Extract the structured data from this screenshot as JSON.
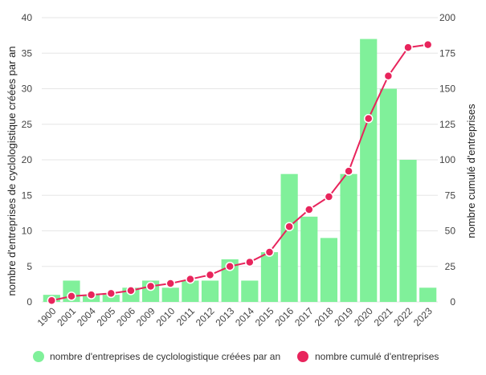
{
  "chart_data": {
    "type": "bar",
    "categories": [
      "1900",
      "2001",
      "2004",
      "2005",
      "2006",
      "2009",
      "2010",
      "2011",
      "2012",
      "2013",
      "2014",
      "2015",
      "2016",
      "2017",
      "2018",
      "2019",
      "2020",
      "2021",
      "2022",
      "2023"
    ],
    "series": [
      {
        "name": "nombre d'entreprises de cyclologistique créées par an",
        "type": "bar",
        "axis": "left",
        "color": "#80f09a",
        "values": [
          1,
          3,
          1,
          1,
          2,
          3,
          2,
          3,
          3,
          6,
          3,
          7,
          18,
          12,
          9,
          18,
          37,
          30,
          20,
          2
        ]
      },
      {
        "name": "nombre cumulé d'entreprises",
        "type": "line",
        "axis": "right",
        "color": "#e8245c",
        "values": [
          1,
          4,
          5,
          6,
          8,
          11,
          13,
          16,
          19,
          25,
          28,
          35,
          53,
          65,
          74,
          92,
          129,
          159,
          179,
          181
        ]
      }
    ],
    "ylabel": "nombre d'entreprises de cyclologistique créées par an",
    "y2label": "nombre cumulé d'entreprises",
    "ylim": [
      0,
      40
    ],
    "y2lim": [
      0,
      200
    ],
    "yticks": [
      "0",
      "5",
      "10",
      "15",
      "20",
      "25",
      "30",
      "35",
      "40"
    ],
    "y2ticks": [
      "0",
      "25",
      "50",
      "75",
      "100",
      "125",
      "150",
      "175",
      "200"
    ],
    "grid": true,
    "legend_position": "bottom"
  }
}
